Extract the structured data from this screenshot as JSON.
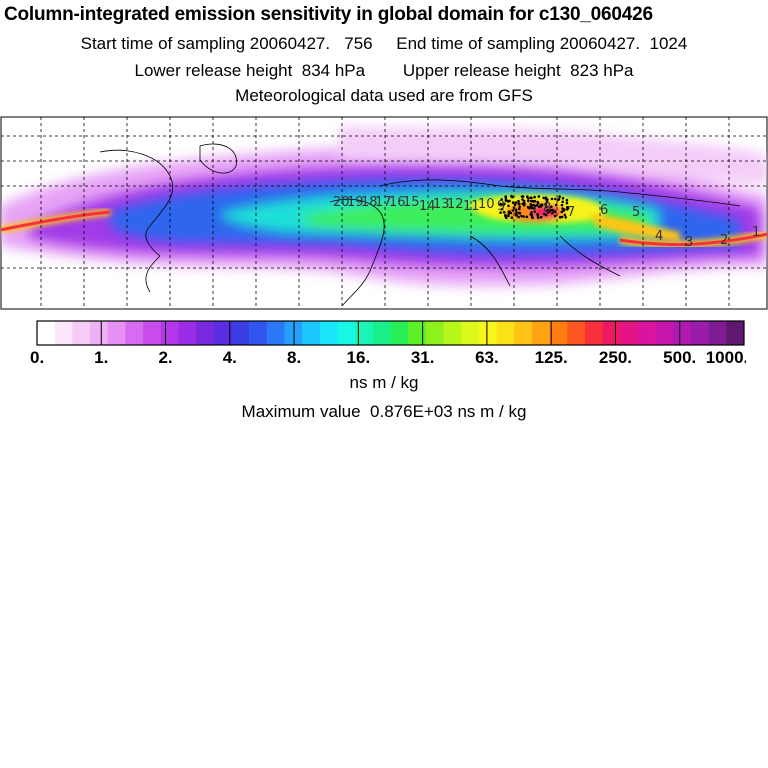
{
  "header": {
    "title": "Column-integrated emission sensitivity in global domain for c130_060426",
    "line1": "Start time of sampling 20060427.   756     End time of sampling 20060427.  1024",
    "line2": "Lower release height  834 hPa        Upper release height  823 hPa",
    "line3": "Meteorological data used are from GFS"
  },
  "colorbar": {
    "tick_labels": [
      "0.",
      "1.",
      "2.",
      "4.",
      "8.",
      "16.",
      "31.",
      "63.",
      "125.",
      "250.",
      "500.",
      "1000."
    ],
    "unit": "ns m / kg",
    "colors": [
      "#ffffff",
      "#fbe6fb",
      "#f5ccf5",
      "#efb1f5",
      "#e791f5",
      "#d86cf0",
      "#c94ded",
      "#b338ea",
      "#9c2de6",
      "#7a28e0",
      "#5a2ee0",
      "#3c3ce4",
      "#2f55ee",
      "#2b78f5",
      "#24a0fa",
      "#1dc6fc",
      "#19e6fb",
      "#18f7e4",
      "#18f5b4",
      "#19f08c",
      "#28ee55",
      "#5cf028",
      "#8ef21a",
      "#b8f51a",
      "#dcf81c",
      "#f6f51c",
      "#fde21a",
      "#ffc416",
      "#ffa312",
      "#ff7e14",
      "#ff5722",
      "#f7303b",
      "#f01865",
      "#e51486",
      "#d9149e",
      "#c716ae",
      "#b01ab0",
      "#9a1ca8",
      "#7f1c95",
      "#5e1870"
    ]
  },
  "maximum": "Maximum value  0.876E+03 ns m / kg",
  "chart_data": {
    "type": "heatmap",
    "title": "Column-integrated emission sensitivity in global domain for c130_060426",
    "colorscale_boundaries": [
      0,
      1,
      2,
      4,
      8,
      16,
      31,
      63,
      125,
      250,
      500,
      1000
    ],
    "unit": "ns m / kg",
    "maximum_value": 876,
    "trajectory_labels": [
      "20",
      "19",
      "18",
      "17",
      "16",
      "15",
      "14",
      "13",
      "12",
      "11",
      "10",
      "9",
      "8",
      "7",
      "6",
      "5",
      "4",
      "3",
      "2",
      "1"
    ],
    "grid": true
  }
}
